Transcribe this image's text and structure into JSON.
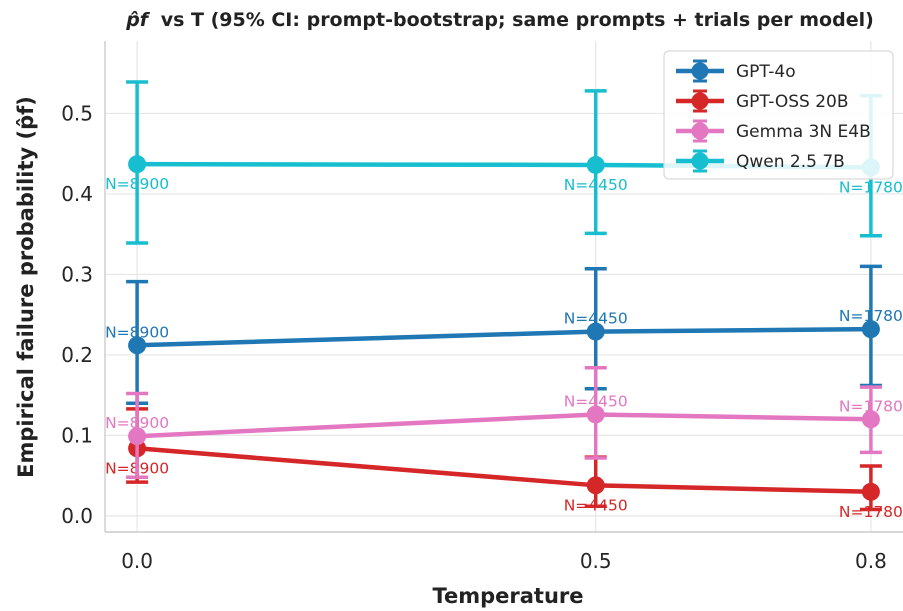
{
  "chart_data": {
    "type": "line",
    "title_prefix": "p̂f",
    "title": "vs T (95% CI: prompt-bootstrap; same prompts + trials per model)",
    "xlabel": "Temperature",
    "ylabel": "Empirical failure probability (p̂f)",
    "x": [
      0.0,
      0.5,
      0.8
    ],
    "x_tick_labels": [
      "0.0",
      "0.5",
      "0.8"
    ],
    "y_ticks": [
      0.0,
      0.1,
      0.2,
      0.3,
      0.4,
      0.5
    ],
    "y_tick_labels": [
      "0.0",
      "0.1",
      "0.2",
      "0.3",
      "0.4",
      "0.5"
    ],
    "xlim": [
      -0.035,
      0.835
    ],
    "ylim": [
      -0.02,
      0.59
    ],
    "grid": true,
    "legend_position": "top-right",
    "series": [
      {
        "name": "GPT-4o",
        "color": "#1f77b4",
        "values": [
          0.212,
          0.229,
          0.232
        ],
        "ci_low": [
          0.14,
          0.158,
          0.162
        ],
        "ci_high": [
          0.291,
          0.307,
          0.31
        ],
        "n_labels": [
          "N=8900",
          "N=4450",
          "N=1780"
        ]
      },
      {
        "name": "GPT-OSS 20B",
        "color": "#d62728",
        "values": [
          0.084,
          0.038,
          0.03
        ],
        "ci_low": [
          0.042,
          0.012,
          0.008
        ],
        "ci_high": [
          0.133,
          0.073,
          0.062
        ],
        "n_labels": [
          "N=8900",
          "N=4450",
          "N=1780"
        ]
      },
      {
        "name": "Gemma 3N E4B",
        "color": "#e377c2",
        "values": [
          0.099,
          0.126,
          0.12
        ],
        "ci_low": [
          0.048,
          0.072,
          0.079
        ],
        "ci_high": [
          0.152,
          0.184,
          0.16
        ],
        "n_labels": [
          "N=8900",
          "N=4450",
          "N=1780"
        ]
      },
      {
        "name": "Qwen 2.5 7B",
        "color": "#17becf",
        "values": [
          0.437,
          0.436,
          0.433
        ],
        "ci_low": [
          0.339,
          0.351,
          0.348
        ],
        "ci_high": [
          0.539,
          0.528,
          0.522
        ],
        "n_labels": [
          "N=8900",
          "N=4450",
          "N=1780"
        ]
      }
    ]
  }
}
